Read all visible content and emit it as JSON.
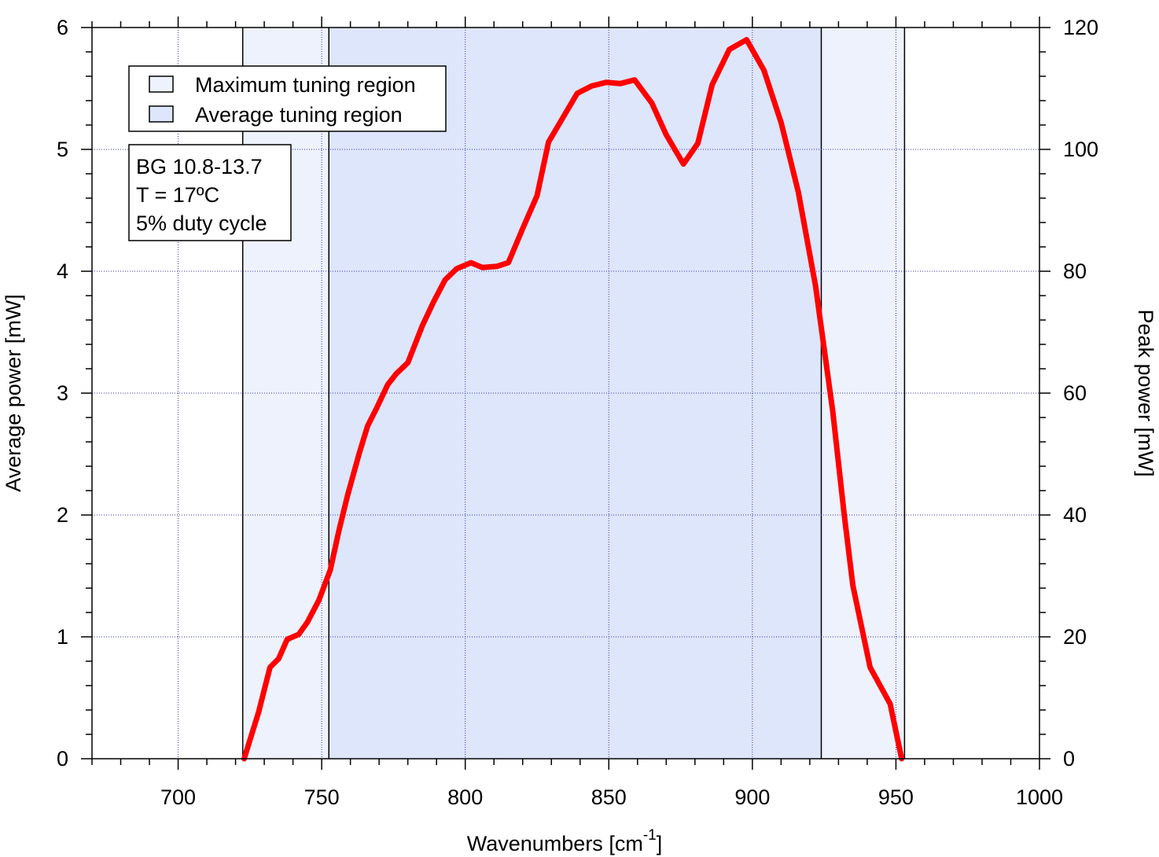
{
  "chart_data": {
    "type": "line",
    "xlabel": "Wavenumbers [cm",
    "xlabel_sup": "-1",
    "xlabel_end": "]",
    "ylabel": "Average power [mW]",
    "y2label": "Peak power [mW]",
    "xlim": [
      670,
      1000
    ],
    "ylim": [
      0,
      6
    ],
    "y2lim": [
      0,
      120
    ],
    "xticks": [
      700,
      750,
      800,
      850,
      900,
      950,
      1000
    ],
    "yticks": [
      0,
      1,
      2,
      3,
      4,
      5,
      6
    ],
    "y2ticks": [
      0,
      20,
      40,
      60,
      80,
      100,
      120
    ],
    "grid": true,
    "regions": [
      {
        "name": "Maximum tuning region",
        "x": [
          722.5,
          953
        ],
        "color": "#eef2fd"
      },
      {
        "name": "Average tuning region",
        "x": [
          752.5,
          924
        ],
        "color": "#dde6fb"
      }
    ],
    "legend": {
      "placement": "top-left",
      "entries": [
        "Maximum tuning region",
        "Average tuning region"
      ]
    },
    "info_box": [
      "BG 10.8-13.7",
      "T = 17ºC",
      "5% duty cycle"
    ],
    "series": [
      {
        "color": "#ff0000",
        "x": [
          723,
          728,
          732,
          735,
          738,
          742,
          745,
          749,
          753,
          756,
          759,
          763,
          766,
          769,
          773,
          776,
          780,
          782,
          785,
          789,
          793,
          797,
          802,
          806,
          811,
          815,
          820,
          825,
          829,
          833,
          839,
          844,
          849,
          854,
          859,
          865,
          870,
          876,
          881,
          886,
          892,
          898,
          904,
          910,
          916,
          922,
          928,
          932,
          935,
          941,
          948,
          952
        ],
        "values": [
          0.0,
          0.38,
          0.75,
          0.82,
          0.98,
          1.02,
          1.12,
          1.3,
          1.55,
          1.87,
          2.16,
          2.5,
          2.73,
          2.87,
          3.07,
          3.16,
          3.25,
          3.37,
          3.55,
          3.75,
          3.93,
          4.02,
          4.07,
          4.03,
          4.04,
          4.07,
          4.35,
          4.62,
          5.06,
          5.22,
          5.46,
          5.52,
          5.55,
          5.54,
          5.57,
          5.38,
          5.12,
          4.88,
          5.05,
          5.53,
          5.82,
          5.9,
          5.65,
          5.22,
          4.65,
          3.88,
          2.85,
          2.0,
          1.42,
          0.75,
          0.45,
          0.0
        ]
      }
    ]
  }
}
